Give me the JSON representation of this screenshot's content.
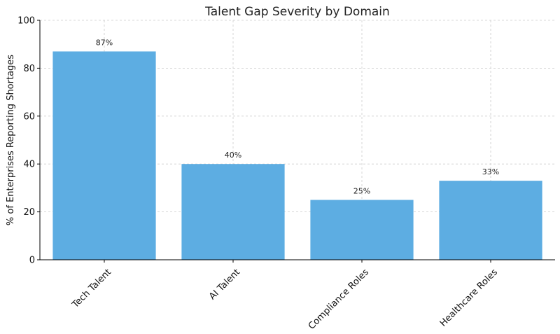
{
  "chart_data": {
    "type": "bar",
    "title": "Talent Gap Severity by Domain",
    "xlabel": "",
    "ylabel": "% of Enterprises Reporting Shortages",
    "categories": [
      "Tech Talent",
      "AI Talent",
      "Compliance Roles",
      "Healthcare Roles"
    ],
    "values": [
      87,
      40,
      25,
      33
    ],
    "data_labels": [
      "87%",
      "40%",
      "25%",
      "33%"
    ],
    "ylim": [
      0,
      100
    ],
    "yticks": [
      0,
      20,
      40,
      60,
      80,
      100
    ],
    "ytick_labels": [
      "0",
      "20",
      "40",
      "60",
      "80",
      "100"
    ],
    "grid": true,
    "bar_color": "#5dade2"
  }
}
